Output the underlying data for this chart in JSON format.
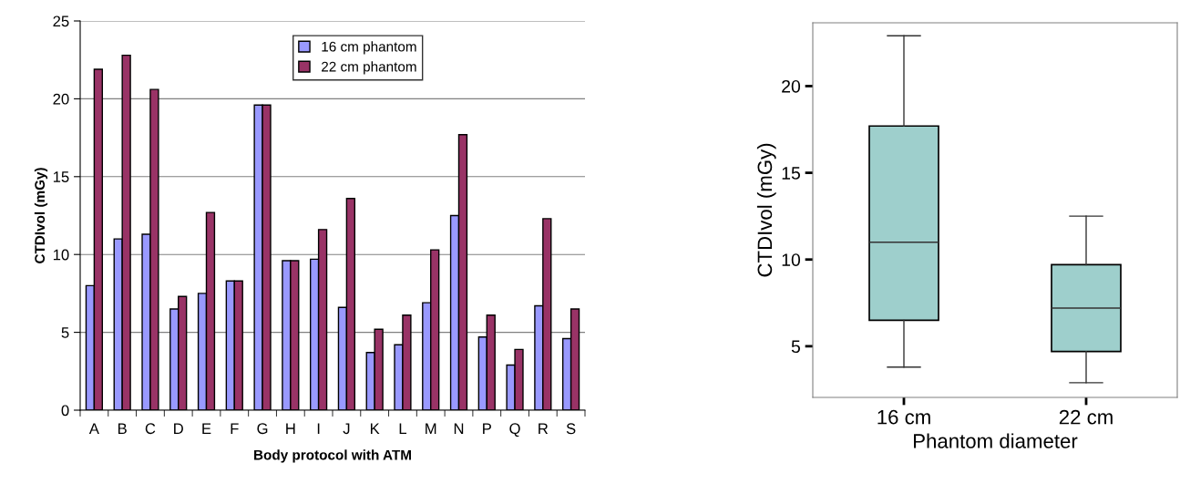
{
  "chart_data": [
    {
      "type": "bar",
      "xlabel": "Body protocol with ATM",
      "ylabel": "CTDIvol (mGy)",
      "categories": [
        "A",
        "B",
        "C",
        "D",
        "E",
        "F",
        "G",
        "H",
        "I",
        "J",
        "K",
        "L",
        "M",
        "N",
        "P",
        "Q",
        "R",
        "S"
      ],
      "series": [
        {
          "name": "16 cm phantom",
          "color": "#9999ff",
          "values": [
            8.0,
            11.0,
            11.3,
            6.5,
            7.5,
            8.3,
            19.6,
            9.6,
            9.7,
            6.6,
            3.7,
            4.2,
            6.9,
            12.5,
            4.7,
            2.9,
            6.7,
            4.6
          ]
        },
        {
          "name": "22 cm phantom",
          "color": "#993366",
          "values": [
            21.9,
            22.8,
            20.6,
            7.3,
            12.7,
            8.3,
            19.6,
            9.6,
            11.6,
            13.6,
            5.2,
            6.1,
            10.3,
            17.7,
            6.1,
            3.9,
            12.3,
            6.5
          ]
        }
      ],
      "ylim": [
        0,
        25
      ],
      "yticks": [
        0,
        5,
        10,
        15,
        20,
        25
      ],
      "grid": "y",
      "legend": "top center"
    },
    {
      "type": "box",
      "xlabel": "Phantom diameter",
      "ylabel": "CTDIvol (mGy)",
      "color": "#9ecfcc",
      "categories": [
        "16 cm",
        "22 cm"
      ],
      "boxes": [
        {
          "low": 3.8,
          "q1": 6.5,
          "median": 11.0,
          "q3": 17.7,
          "high": 22.9
        },
        {
          "low": 2.9,
          "q1": 4.7,
          "median": 7.2,
          "q3": 9.7,
          "high": 12.5
        }
      ],
      "ylim": [
        2.05,
        23.65
      ],
      "yticks": [
        5,
        10,
        15,
        20
      ],
      "grid": false
    }
  ]
}
